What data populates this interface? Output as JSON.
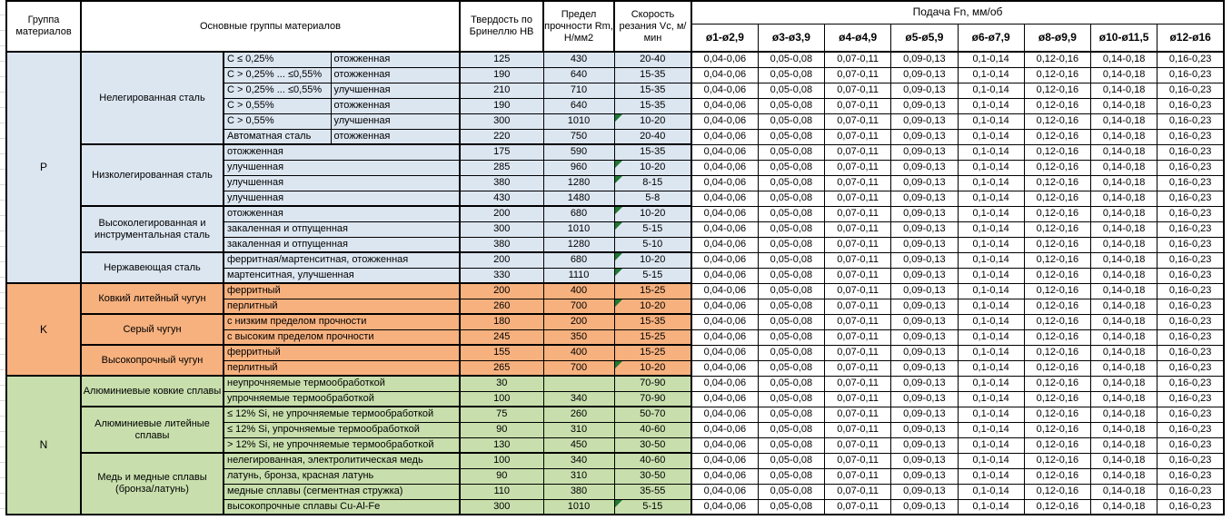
{
  "header": {
    "col_group": "Группа материалов",
    "col_main": "Основные группы материалов",
    "col_hb": "Твердость по Бринеллю НВ",
    "col_rm": "Предел прочности Rm, Н/мм2",
    "col_vc": "Скорость резания Vc, м/мин",
    "feed_title": "Подача Fn, мм/об",
    "feed_cols": [
      "ø1-ø2,9",
      "ø3-ø3,9",
      "ø4-ø4,9",
      "ø5-ø5,9",
      "ø6-ø7,9",
      "ø8-ø9,9",
      "ø10-ø11,5",
      "ø12-ø16"
    ]
  },
  "feed_values": [
    "0,04-0,06",
    "0,05-0,08",
    "0,07-0,11",
    "0,09-0,13",
    "0,1-0,14",
    "0,12-0,16",
    "0,14-0,18",
    "0,16-0,23"
  ],
  "colors": {
    "group_p": "#dce6f1",
    "group_k": "#f7b17e",
    "group_n": "#c8dfad",
    "note_marker": "#1f7a33",
    "border": "#000000"
  },
  "groups": [
    {
      "code": "P",
      "color": "#dce6f1",
      "families": [
        {
          "name": "Нелегированная сталь",
          "rows": [
            {
              "sub": "C ≤ 0,25%",
              "state": "отожженная",
              "hb": "125",
              "rm": "430",
              "vc": "20-40",
              "marker": false
            },
            {
              "sub": "C > 0,25% ... ≤0,55%",
              "state": "отожженная",
              "hb": "190",
              "rm": "640",
              "vc": "15-35",
              "marker": false
            },
            {
              "sub": "C > 0,25% ... ≤0,55%",
              "state": "улучшенная",
              "hb": "210",
              "rm": "710",
              "vc": "15-35",
              "marker": false
            },
            {
              "sub": "C > 0,55%",
              "state": "отожженная",
              "hb": "190",
              "rm": "640",
              "vc": "15-35",
              "marker": false
            },
            {
              "sub": "C > 0,55%",
              "state": "улучшенная",
              "hb": "300",
              "rm": "1010",
              "vc": "10-20",
              "marker": true
            },
            {
              "sub": "Автоматная сталь",
              "state": "отожженная",
              "hb": "220",
              "rm": "750",
              "vc": "20-40",
              "marker": false
            }
          ]
        },
        {
          "name": "Низколегированная сталь",
          "rows": [
            {
              "span": "отожженная",
              "hb": "175",
              "rm": "590",
              "vc": "15-35",
              "marker": false
            },
            {
              "span": "улучшенная",
              "hb": "285",
              "rm": "960",
              "vc": "10-20",
              "marker": true
            },
            {
              "span": "улучшенная",
              "hb": "380",
              "rm": "1280",
              "vc": "8-15",
              "marker": true
            },
            {
              "span": "улучшенная",
              "hb": "430",
              "rm": "1480",
              "vc": "5-8",
              "marker": false
            }
          ]
        },
        {
          "name": "Высоколегированная и инструментальная сталь",
          "rows": [
            {
              "span": "отожженная",
              "hb": "200",
              "rm": "680",
              "vc": "10-20",
              "marker": true
            },
            {
              "span": "закаленная и отпущенная",
              "hb": "300",
              "rm": "1010",
              "vc": "5-15",
              "marker": true
            },
            {
              "span": "закаленная и отпущенная",
              "hb": "380",
              "rm": "1280",
              "vc": "5-10",
              "marker": false
            }
          ]
        },
        {
          "name": "Нержавеющая сталь",
          "rows": [
            {
              "span": "ферритная/мартенситная, отожженная",
              "hb": "200",
              "rm": "680",
              "vc": "10-20",
              "marker": true
            },
            {
              "span": "мартенситная, улучшенная",
              "hb": "330",
              "rm": "1110",
              "vc": "5-15",
              "marker": true
            }
          ]
        }
      ]
    },
    {
      "code": "K",
      "color": "#f7b17e",
      "families": [
        {
          "name": "Ковкий литейный чугун",
          "rows": [
            {
              "span": "ферритный",
              "hb": "200",
              "rm": "400",
              "vc": "15-25",
              "marker": false
            },
            {
              "span": "перлитный",
              "hb": "260",
              "rm": "700",
              "vc": "10-20",
              "marker": true
            }
          ]
        },
        {
          "name": "Серый чугун",
          "rows": [
            {
              "span": "с низким пределом прочности",
              "hb": "180",
              "rm": "200",
              "vc": "15-35",
              "marker": false
            },
            {
              "span": "с высоким пределом прочности",
              "hb": "245",
              "rm": "350",
              "vc": "15-25",
              "marker": false
            }
          ]
        },
        {
          "name": "Высокопрочный чугун",
          "rows": [
            {
              "span": "ферритный",
              "hb": "155",
              "rm": "400",
              "vc": "15-25",
              "marker": false
            },
            {
              "span": "перлитный",
              "hb": "265",
              "rm": "700",
              "vc": "10-20",
              "marker": true
            }
          ]
        }
      ]
    },
    {
      "code": "N",
      "color": "#c8dfad",
      "families": [
        {
          "name": "Алюминиевые ковкие сплавы",
          "rows": [
            {
              "span": "неупрочняемые термообработкой",
              "hb": "30",
              "rm": "",
              "vc": "70-90",
              "marker": false
            },
            {
              "span": "упрочняемые термообработкой",
              "hb": "100",
              "rm": "340",
              "vc": "70-90",
              "marker": false
            }
          ]
        },
        {
          "name": "Алюминиевые литейные сплавы",
          "rows": [
            {
              "span": "≤ 12% Si, не упрочняемые термообработкой",
              "hb": "75",
              "rm": "260",
              "vc": "50-70",
              "marker": false
            },
            {
              "span": "≤ 12% Si, упрочняемые термообработкой",
              "hb": "90",
              "rm": "310",
              "vc": "40-60",
              "marker": false
            },
            {
              "span": "> 12% Si, не упрочняемые термообработкой",
              "hb": "130",
              "rm": "450",
              "vc": "30-50",
              "marker": false
            }
          ]
        },
        {
          "name": "Медь и медные сплавы (бронза/латунь)",
          "rows": [
            {
              "span": "нелегированная, электролитическая медь",
              "hb": "100",
              "rm": "340",
              "vc": "40-60",
              "marker": false
            },
            {
              "span": "латунь, бронза, красная латунь",
              "hb": "90",
              "rm": "310",
              "vc": "30-50",
              "marker": false
            },
            {
              "span": "медные сплавы (сегментная стружка)",
              "hb": "110",
              "rm": "380",
              "vc": "35-55",
              "marker": false
            },
            {
              "span": "высокопрочные сплавы Cu-Al-Fe",
              "hb": "300",
              "rm": "1010",
              "vc": "5-15",
              "marker": true
            }
          ]
        }
      ]
    }
  ]
}
